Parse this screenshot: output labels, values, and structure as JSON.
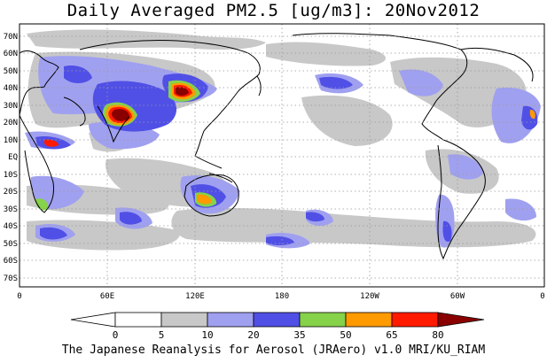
{
  "title": "Daily Averaged PM2.5 [ug/m3]: 20Nov2012",
  "credit": "The Japanese Reanalysis for Aerosol (JRAero) v1.0 MRI/KU_RIAM",
  "map": {
    "projection": "equirectangular",
    "lon_range": [
      0,
      360
    ],
    "lat_range": [
      -75,
      75
    ],
    "lat_labels": [
      "70N",
      "60N",
      "50N",
      "40N",
      "30N",
      "20N",
      "10N",
      "EQ",
      "10S",
      "20S",
      "30S",
      "40S",
      "50S",
      "60S",
      "70S"
    ],
    "lon_labels": [
      "0",
      "60E",
      "120E",
      "180",
      "120W",
      "60W",
      "0"
    ],
    "gridlines": "dotted"
  },
  "colorbar": {
    "levels": [
      "0",
      "5",
      "10",
      "20",
      "35",
      "50",
      "65",
      "80"
    ],
    "colors": [
      "#ffffff",
      "#c8c8c8",
      "#a0a0f0",
      "#5050e6",
      "#86d24a",
      "#ff9a00",
      "#ff1a00",
      "#8a0000"
    ]
  }
}
